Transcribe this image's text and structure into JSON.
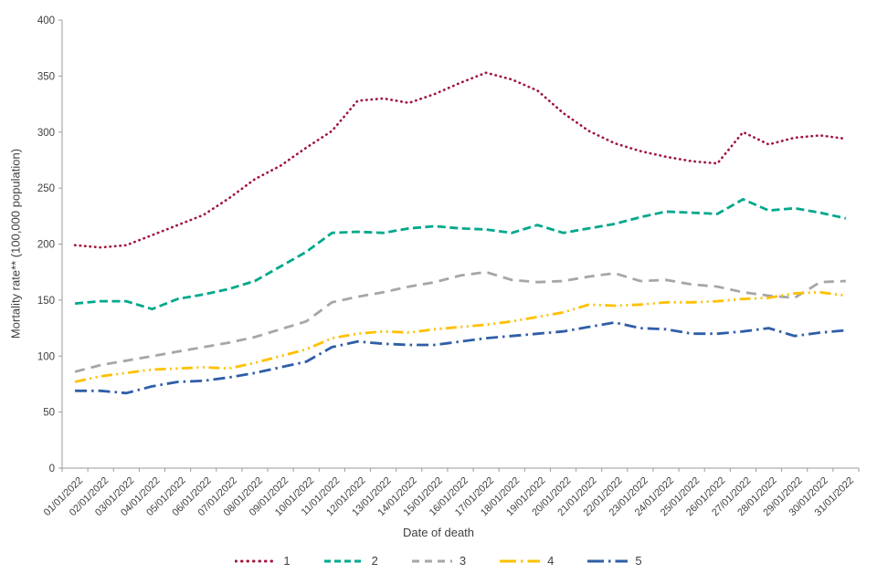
{
  "chart_data": {
    "type": "line",
    "title": "",
    "xlabel": "Date of death",
    "ylabel": "Mortality rate** (100,000 population)",
    "ylim": [
      0,
      400
    ],
    "ytick_step": 50,
    "yticks": [
      0,
      50,
      100,
      150,
      200,
      250,
      300,
      350,
      400
    ],
    "grid": false,
    "legend_position": "bottom-center",
    "axis_color": "#9B9B9B",
    "text_color": "#404040",
    "x": [
      "01/01/2022",
      "02/01/2022",
      "03/01/2022",
      "04/01/2022",
      "05/01/2022",
      "06/01/2022",
      "07/01/2022",
      "08/01/2022",
      "09/01/2022",
      "10/01/2022",
      "11/01/2022",
      "12/01/2022",
      "13/01/2022",
      "14/01/2022",
      "15/01/2022",
      "16/01/2022",
      "17/01/2022",
      "18/01/2022",
      "19/01/2022",
      "20/01/2022",
      "21/01/2022",
      "22/01/2022",
      "23/01/2022",
      "24/01/2022",
      "25/01/2022",
      "26/01/2022",
      "27/01/2022",
      "28/01/2022",
      "29/01/2022",
      "30/01/2022",
      "31/01/2022"
    ],
    "series": [
      {
        "name": "1",
        "color": "#A0143C",
        "style": "dotted",
        "values": [
          199,
          197,
          199,
          208,
          217,
          226,
          241,
          258,
          270,
          286,
          301,
          328,
          330,
          326,
          334,
          344,
          353,
          347,
          337,
          317,
          301,
          290,
          283,
          278,
          274,
          272,
          300,
          289,
          295,
          297,
          294
        ]
      },
      {
        "name": "2",
        "color": "#00A88C",
        "style": "dashed",
        "values": [
          147,
          149,
          149,
          142,
          151,
          155,
          160,
          167,
          180,
          193,
          210,
          211,
          210,
          214,
          216,
          214,
          213,
          210,
          217,
          210,
          214,
          218,
          224,
          229,
          228,
          227,
          240,
          230,
          232,
          228,
          223
        ]
      },
      {
        "name": "3",
        "color": "#A6A6A6",
        "style": "dashed-long",
        "values": [
          86,
          92,
          96,
          100,
          104,
          108,
          112,
          117,
          124,
          131,
          148,
          153,
          157,
          162,
          166,
          172,
          175,
          168,
          166,
          167,
          171,
          174,
          167,
          168,
          164,
          162,
          157,
          154,
          152,
          166,
          167
        ]
      },
      {
        "name": "4",
        "color": "#FFC000",
        "style": "dash-dot-dot",
        "values": [
          77,
          82,
          85,
          88,
          89,
          90,
          89,
          94,
          100,
          106,
          116,
          120,
          122,
          121,
          124,
          126,
          128,
          131,
          135,
          139,
          146,
          145,
          146,
          148,
          148,
          149,
          151,
          152,
          156,
          157,
          154
        ]
      },
      {
        "name": "5",
        "color": "#2F5EA8",
        "style": "dash-dot",
        "values": [
          69,
          69,
          67,
          73,
          77,
          78,
          81,
          85,
          90,
          95,
          108,
          113,
          111,
          110,
          110,
          113,
          116,
          118,
          120,
          122,
          126,
          130,
          125,
          124,
          120,
          120,
          122,
          125,
          118,
          121,
          123
        ]
      }
    ]
  }
}
